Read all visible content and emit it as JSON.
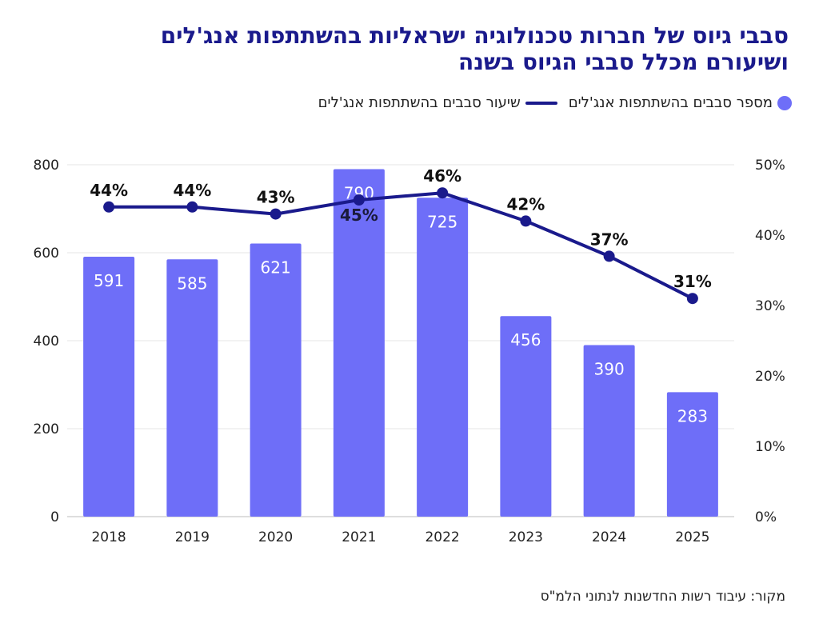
{
  "title_line1": "סבבי גיוס של חברות טכנולוגיה ישראליות בהשתתפות אנג'לים",
  "title_line2": "ושיעורם מכלל סבבי הגיוס בשנה",
  "source": "מקור: עיבוד רשות החדשנות לנתוני הלמ\"ס",
  "colors": {
    "bar": "#6e6ef8",
    "line": "#1a1a8c",
    "title": "#1a1a8c"
  },
  "chart_data": {
    "type": "bar",
    "categories": [
      "2018",
      "2019",
      "2020",
      "2021",
      "2022",
      "2023",
      "2024",
      "2025"
    ],
    "series": [
      {
        "name": "מספר סבבים בהשתתפות אנג'לים",
        "type": "bar",
        "axis": "left",
        "values": [
          591,
          585,
          621,
          790,
          725,
          456,
          390,
          283
        ],
        "labels": [
          "591",
          "585",
          "621",
          "790",
          "725",
          "456",
          "390",
          "283"
        ]
      },
      {
        "name": "שיעור סבבים בהשתתפות אנג'לים",
        "type": "line",
        "axis": "right",
        "values": [
          44,
          44,
          43,
          45,
          46,
          42,
          37,
          31
        ],
        "labels": [
          "44%",
          "44%",
          "43%",
          "45%",
          "46%",
          "42%",
          "37%",
          "31%"
        ]
      }
    ],
    "y_left": {
      "min": 0,
      "max": 800,
      "ticks": [
        "0",
        "200",
        "400",
        "600",
        "800"
      ]
    },
    "y_right": {
      "min": 0,
      "max": 50,
      "ticks": [
        "0%",
        "10%",
        "20%",
        "30%",
        "40%",
        "50%"
      ]
    },
    "grid": true,
    "legend_position": "top-right"
  }
}
